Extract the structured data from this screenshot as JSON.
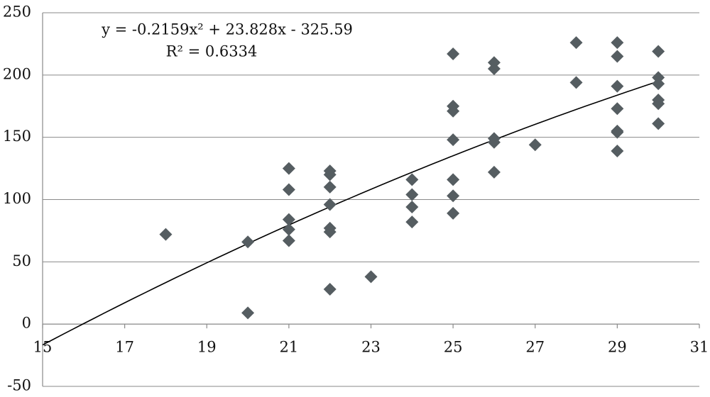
{
  "chart_data": {
    "type": "scatter",
    "equation": "y = -0.2159x² + 23.828x - 325.59",
    "r_squared_label": "R² = 0.6334",
    "series": [
      {
        "color": "#555d61",
        "x": [
          18,
          20,
          20,
          21,
          21,
          21,
          21,
          21,
          22,
          22,
          22,
          22,
          22,
          22,
          22,
          23,
          24,
          24,
          24,
          24,
          25,
          25,
          25,
          25,
          25,
          25,
          25,
          26,
          26,
          26,
          26,
          26,
          27,
          28,
          28,
          29,
          29,
          29,
          29,
          29,
          29,
          29,
          30,
          30,
          30,
          30,
          30,
          30
        ],
        "values": [
          72,
          66,
          9,
          125,
          108,
          84,
          76,
          67,
          123,
          120,
          110,
          96,
          77,
          74,
          28,
          38,
          116,
          104,
          94,
          82,
          217,
          175,
          171,
          148,
          116,
          103,
          89,
          210,
          205,
          149,
          146,
          122,
          144,
          226,
          194,
          226,
          215,
          191,
          173,
          155,
          154,
          139,
          219,
          198,
          193,
          180,
          177,
          161
        ]
      }
    ],
    "trendline": {
      "coefficients": [
        -0.2159,
        23.828,
        -325.59
      ],
      "x_range": [
        15,
        30
      ],
      "color": "#000000"
    },
    "xlim": [
      15,
      31
    ],
    "xticks": [
      15,
      17,
      19,
      21,
      23,
      25,
      27,
      29,
      31
    ],
    "ylim": [
      -50,
      250
    ],
    "yticks": [
      -50,
      0,
      50,
      100,
      150,
      200,
      250
    ],
    "grid": true
  }
}
